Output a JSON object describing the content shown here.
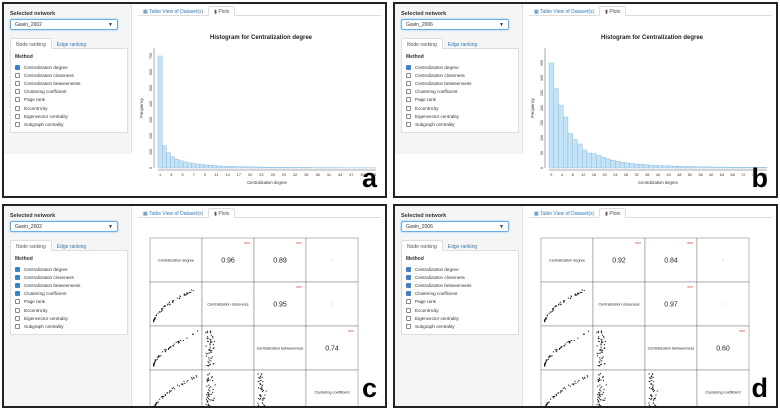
{
  "colors": {
    "accent": "#337ab7",
    "bar_fill": "#c6e3f6",
    "bar_stroke": "#78b6e0",
    "checkbox_on": "#3b83c7",
    "sig": "#e0452f"
  },
  "common": {
    "selected_label": "Selected network",
    "tab_node": "Node ranking",
    "tab_edge": "Edge ranking",
    "main_tab_table": "Table View of Dataset(s)",
    "main_tab_plots": "Plots",
    "method_title": "Method",
    "methods": [
      "Centralization degree",
      "Centralization closeness",
      "Centralization betweenness",
      "Clustering coefficient",
      "Page rank",
      "Eccentricity",
      "Eigenvector centrality",
      "Subgraph centrality"
    ]
  },
  "panels": {
    "a": {
      "letter": "a",
      "network": "Gavin_2002",
      "checked": [
        true,
        false,
        false,
        false,
        false,
        false,
        false,
        false
      ]
    },
    "b": {
      "letter": "b",
      "network": "Gavin_2006",
      "checked": [
        true,
        false,
        false,
        false,
        false,
        false,
        false,
        false
      ]
    },
    "c": {
      "letter": "c",
      "network": "Gavin_2002",
      "checked": [
        true,
        true,
        true,
        true,
        false,
        false,
        false,
        false
      ]
    },
    "d": {
      "letter": "d",
      "network": "Gavin_2006",
      "checked": [
        true,
        true,
        true,
        true,
        false,
        false,
        false,
        false
      ]
    }
  },
  "chart_data": [
    {
      "panel": "a",
      "type": "bar",
      "title": "Histogram for Centralization degree",
      "xlabel": "Centralization degree",
      "ylabel": "Frequency",
      "ylim": [
        0,
        750
      ],
      "yticks": [
        "0",
        "100",
        "200",
        "300",
        "400",
        "500",
        "600",
        "700"
      ],
      "xticks": [
        "1",
        "3",
        "5",
        "7",
        "9",
        "11",
        "14",
        "17",
        "20",
        "23",
        "26",
        "29",
        "32",
        "35",
        "38",
        "41",
        "44",
        "47",
        "50",
        "53"
      ],
      "values": [
        700,
        140,
        95,
        70,
        55,
        45,
        38,
        32,
        28,
        25,
        22,
        19,
        17,
        15,
        13,
        12,
        11,
        10,
        9,
        8,
        8,
        7,
        7,
        6,
        6,
        5,
        5,
        5,
        4,
        4,
        4,
        4,
        3,
        3,
        3,
        3,
        3,
        2,
        2,
        2,
        2,
        2,
        2,
        2,
        1,
        1,
        1,
        1,
        1,
        1,
        1,
        1
      ]
    },
    {
      "panel": "b",
      "type": "bar",
      "title": "Histogram for Centralization degree",
      "xlabel": "Centralization degree",
      "ylabel": "Frequency",
      "ylim": [
        0,
        400
      ],
      "yticks": [
        "0",
        "50",
        "100",
        "150",
        "200",
        "250",
        "300",
        "350"
      ],
      "xticks": [
        "0",
        "4",
        "8",
        "12",
        "16",
        "20",
        "24",
        "28",
        "32",
        "36",
        "40",
        "44",
        "48",
        "52",
        "56",
        "60",
        "64",
        "68",
        "72",
        "76",
        "80"
      ],
      "values": [
        350,
        265,
        210,
        170,
        115,
        95,
        80,
        60,
        50,
        48,
        42,
        36,
        30,
        26,
        22,
        19,
        17,
        15,
        13,
        12,
        11,
        10,
        9,
        8,
        8,
        7,
        6,
        6,
        5,
        5,
        5,
        4,
        4,
        4,
        3,
        3,
        3,
        3,
        2,
        2,
        2,
        2,
        2,
        2,
        2,
        2
      ]
    },
    {
      "panel": "c",
      "type": "scatter",
      "title": "",
      "variables": [
        "Centralization degree",
        "Centralization closeness",
        "Centralization betweenness",
        "Clustering coefficient"
      ],
      "correlations": {
        "0-1": "0.96",
        "0-2": "0.89",
        "1-2": "0.95",
        "2-3": "0.74"
      },
      "sig": "***"
    },
    {
      "panel": "d",
      "type": "scatter",
      "title": "",
      "variables": [
        "Centralization degree",
        "Centralization closeness",
        "Centralization betweenness",
        "Clustering coefficient"
      ],
      "correlations": {
        "0-1": "0.92",
        "0-2": "0.84",
        "1-2": "0.97",
        "2-3": "0.60"
      },
      "sig": "***"
    }
  ]
}
